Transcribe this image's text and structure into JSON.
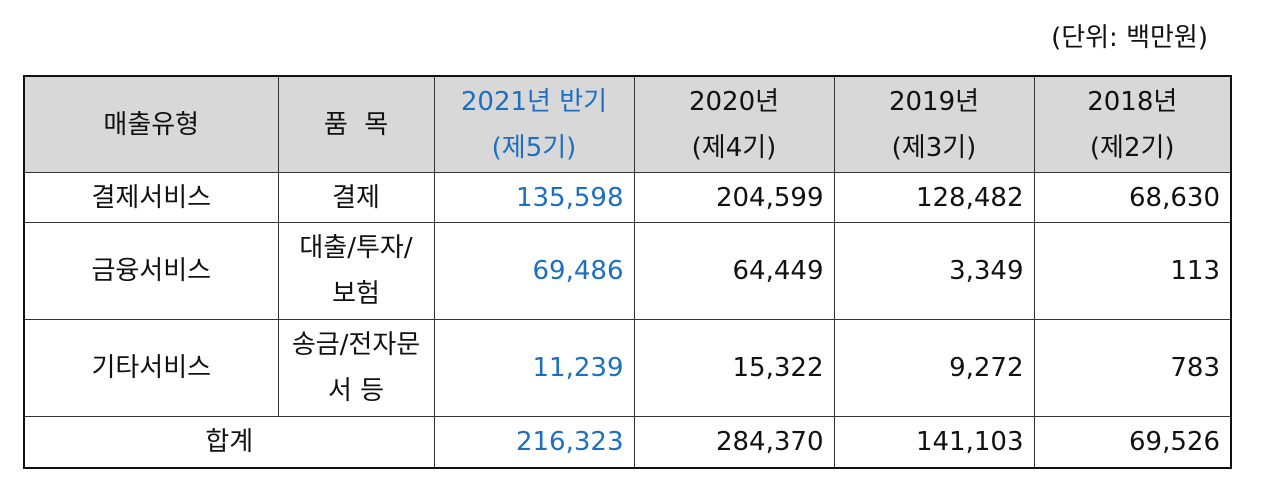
{
  "unit_note": "(단위: 백만원)",
  "colors": {
    "highlight": "#1e6fc0",
    "header_bg": "#d8d8d8"
  },
  "header": {
    "type": "매출유형",
    "item": "품  목",
    "cols": [
      {
        "year": "2021년 반기",
        "period": "(제5기)"
      },
      {
        "year": "2020년",
        "period": "(제4기)"
      },
      {
        "year": "2019년",
        "period": "(제3기)"
      },
      {
        "year": "2018년",
        "period": "(제2기)"
      }
    ]
  },
  "rows": [
    {
      "type": "결제서비스",
      "item_line1": "결제",
      "item_line2": "",
      "values": [
        "135,598",
        "204,599",
        "128,482",
        "68,630"
      ]
    },
    {
      "type": "금융서비스",
      "item_line1": "대출/투자/",
      "item_line2": "보험",
      "values": [
        "69,486",
        "64,449",
        "3,349",
        "113"
      ]
    },
    {
      "type": "기타서비스",
      "item_line1": "송금/전자문",
      "item_line2": "서 등",
      "values": [
        "11,239",
        "15,322",
        "9,272",
        "783"
      ]
    }
  ],
  "total": {
    "label": "합계",
    "values": [
      "216,323",
      "284,370",
      "141,103",
      "69,526"
    ]
  }
}
